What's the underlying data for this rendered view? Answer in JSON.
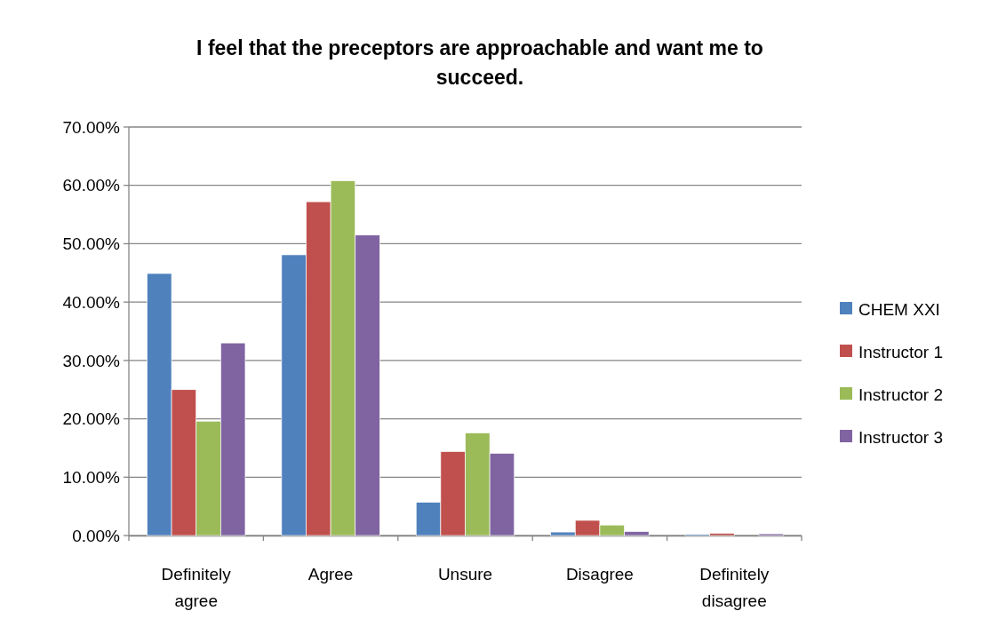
{
  "chart_data": {
    "type": "bar",
    "title": "I feel that the preceptors are approachable and want me to succeed.",
    "categories": [
      "Definitely agree",
      "Agree",
      "Unsure",
      "Disagree",
      "Definitely disagree"
    ],
    "series": [
      {
        "name": "CHEM XXI",
        "color": "#4f81bd",
        "values": [
          44.9,
          48.1,
          5.7,
          0.6,
          0.2
        ]
      },
      {
        "name": "Instructor 1",
        "color": "#c0504d",
        "values": [
          25.0,
          57.2,
          14.4,
          2.6,
          0.4
        ]
      },
      {
        "name": "Instructor 2",
        "color": "#9bbb59",
        "values": [
          19.6,
          60.8,
          17.6,
          1.8,
          0
        ]
      },
      {
        "name": "Instructor 3",
        "color": "#8064a2",
        "values": [
          33.0,
          51.5,
          14.1,
          0.7,
          0.3
        ]
      }
    ],
    "ylim": [
      0,
      70
    ],
    "yticks": [
      {
        "value": 0,
        "label": "0.00%"
      },
      {
        "value": 10,
        "label": "10.00%"
      },
      {
        "value": 20,
        "label": "20.00%"
      },
      {
        "value": 30,
        "label": "30.00%"
      },
      {
        "value": 40,
        "label": "40.00%"
      },
      {
        "value": 50,
        "label": "50.00%"
      },
      {
        "value": 60,
        "label": "60.00%"
      },
      {
        "value": 70,
        "label": "70.00%"
      }
    ],
    "grid": "y",
    "legend": "right"
  }
}
